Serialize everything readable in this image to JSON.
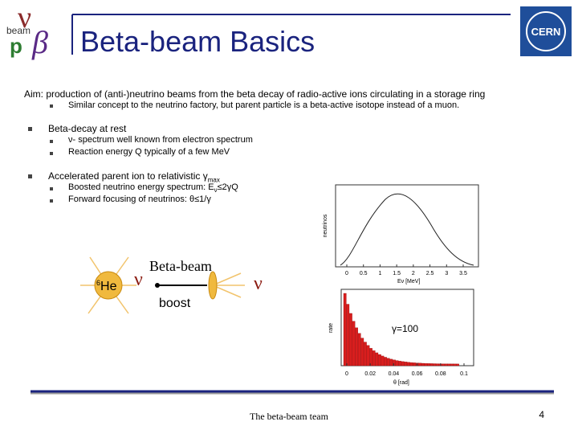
{
  "logo": {
    "nu": "ν",
    "beta": "β",
    "beam": "beam",
    "p": "p"
  },
  "header": {
    "title": "Beta-beam Basics",
    "cern": "CERN"
  },
  "body": {
    "aim": "Aim: production of (anti-)neutrino beams from the beta decay of radio-active ions circulating in a storage ring",
    "aim_sub": "Similar concept to the neutrino factory, but parent particle is a beta-active isotope instead of a muon.",
    "bullet1": "Beta-decay at rest",
    "bullet1_subs": [
      "ν- spectrum well known from electron spectrum",
      "Reaction energy Q typically of a few MeV"
    ],
    "bullet2": {
      "text": "Accelerated parent ion to relativistic γ",
      "sub": "max"
    },
    "bullet2_subs": [
      {
        "text": "Boosted neutrino energy spectrum: E",
        "sub": "ν",
        "tail": "≤2γQ"
      },
      {
        "text": "Forward focusing of neutrinos: θ≤1/γ"
      }
    ]
  },
  "diagram": {
    "ion_mass": "6",
    "ion": "He",
    "nu_left": "ν",
    "label": "Beta-beam",
    "boost": "boost",
    "nu_right": "ν"
  },
  "energy_plot": {
    "ylabel": "neutrinos",
    "xlabel": "Eν [MeV]",
    "xticks": [
      0,
      0.5,
      1,
      1.5,
      2,
      2.5,
      3,
      3.5
    ]
  },
  "angle_plot": {
    "ylabel": "rate",
    "xlabel": "θ [rad]",
    "annotation": "γ=100",
    "xticks": [
      0,
      0.02,
      0.04,
      0.06,
      0.08,
      0.1
    ]
  },
  "footer": {
    "team": "The beta-beam team",
    "page": "4"
  }
}
